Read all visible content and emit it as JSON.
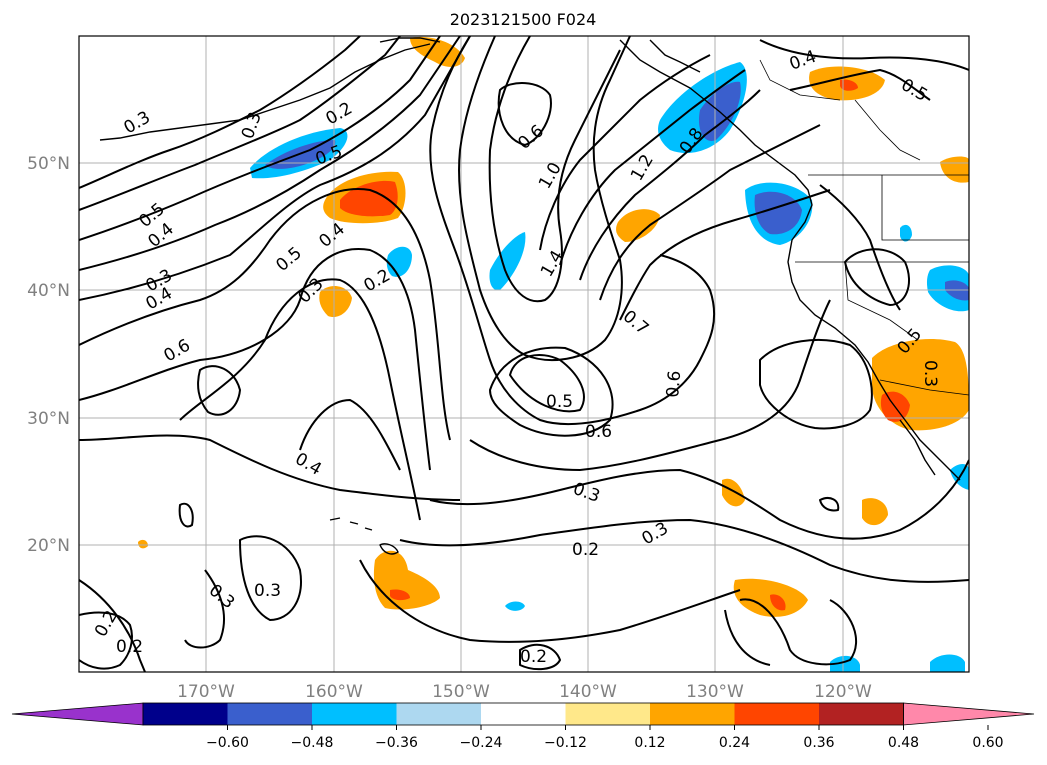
{
  "title": "2023121500 F024",
  "lon_labels": [
    "170°W",
    "160°W",
    "150°W",
    "140°W",
    "130°W",
    "120°W"
  ],
  "lat_labels": [
    "50°N",
    "40°N",
    "30°N",
    "20°N"
  ],
  "colorbar": {
    "ticks": [
      "−0.60",
      "−0.48",
      "−0.36",
      "−0.24",
      "−0.12",
      "0.12",
      "0.24",
      "0.36",
      "0.48",
      "0.60"
    ],
    "colors": [
      "#9932cc",
      "#00008b",
      "#3a5fcd",
      "#00bfff",
      "#add8f0",
      "#ffffff",
      "#ffe88a",
      "#ffa500",
      "#ff4500",
      "#b22222",
      "#ff88aa"
    ]
  },
  "contour_labels": [
    "0.3",
    "0.3",
    "0.2",
    "0.5",
    "0.6",
    "1.0",
    "1.2",
    "0.8",
    "0.4",
    "0.5",
    "0.5",
    "0.4",
    "0.3",
    "0.4",
    "0.5",
    "0.4",
    "0.3",
    "0.2",
    "0.6",
    "1.4",
    "0.7",
    "0.5",
    "0.3",
    "0.6",
    "0.5",
    "0.6",
    "0.4",
    "0.3",
    "0.2",
    "0.3",
    "0.3",
    "0.3",
    "0.2",
    "0.2",
    "0.2"
  ]
}
